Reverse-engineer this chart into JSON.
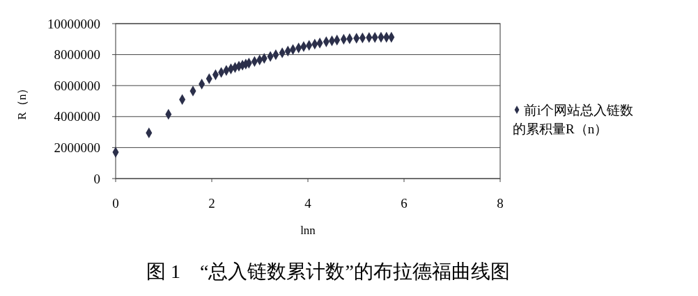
{
  "chart_data": {
    "type": "scatter",
    "title": "图 1　“总入链数累计数”的布拉德福曲线图",
    "xlabel": "lnn",
    "ylabel": "R（n）",
    "xlim": [
      0,
      8
    ],
    "xticks": [
      0,
      2,
      4,
      6,
      8
    ],
    "ylim": [
      0,
      10000000
    ],
    "yticks": [
      0,
      2000000,
      4000000,
      6000000,
      8000000,
      10000000
    ],
    "grid": "y",
    "legend": "right",
    "marker": "diamond",
    "series": [
      {
        "name": "前i个网站总入链数的累积量R（n）",
        "color": "#2b2f4a",
        "x": [
          0,
          0.693,
          1.099,
          1.386,
          1.609,
          1.792,
          1.946,
          2.079,
          2.197,
          2.303,
          2.398,
          2.485,
          2.565,
          2.639,
          2.708,
          2.773,
          2.89,
          2.996,
          3.091,
          3.219,
          3.332,
          3.466,
          3.584,
          3.689,
          3.807,
          3.912,
          4.025,
          4.143,
          4.248,
          4.382,
          4.5,
          4.605,
          4.745,
          4.868,
          5.011,
          5.136,
          5.273,
          5.394,
          5.521,
          5.635,
          5.737
        ],
        "values": [
          1700000,
          2950000,
          4150000,
          5100000,
          5650000,
          6100000,
          6450000,
          6700000,
          6850000,
          6980000,
          7080000,
          7170000,
          7250000,
          7320000,
          7390000,
          7450000,
          7560000,
          7660000,
          7760000,
          7880000,
          7990000,
          8120000,
          8230000,
          8330000,
          8430000,
          8520000,
          8600000,
          8680000,
          8750000,
          8830000,
          8890000,
          8940000,
          8990000,
          9030000,
          9060000,
          9080000,
          9100000,
          9110000,
          9120000,
          9120000,
          9120000
        ]
      }
    ]
  }
}
